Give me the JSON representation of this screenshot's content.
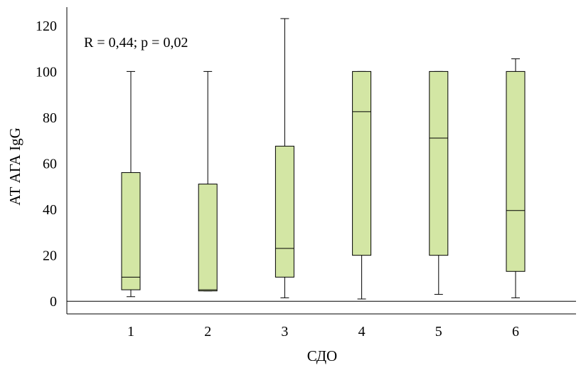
{
  "chart_data": {
    "type": "boxplot",
    "xlabel": "СДО",
    "ylabel": "АТ АГА IgG",
    "annotation": "R = 0,44; p = 0,02",
    "categories": [
      "1",
      "2",
      "3",
      "4",
      "5",
      "6"
    ],
    "ylim": [
      -5.5,
      128
    ],
    "yticks": [
      "0",
      "20",
      "40",
      "60",
      "80",
      "100",
      "120"
    ],
    "reference_line": 0,
    "grid": false,
    "box_color": "#d3e6a4",
    "boxes": [
      {
        "category": "1",
        "min": 2,
        "q1": 5,
        "median": 10.5,
        "q3": 56,
        "max": 100
      },
      {
        "category": "2",
        "min": 4.5,
        "q1": 4.5,
        "median": 5,
        "q3": 51,
        "max": 100
      },
      {
        "category": "3",
        "min": 1.5,
        "q1": 10.5,
        "median": 23,
        "q3": 67.5,
        "max": 123
      },
      {
        "category": "4",
        "min": 1,
        "q1": 20,
        "median": 82.5,
        "q3": 100,
        "max": 100
      },
      {
        "category": "5",
        "min": 3,
        "q1": 20,
        "median": 71,
        "q3": 100,
        "max": 100
      },
      {
        "category": "6",
        "min": 1.5,
        "q1": 13,
        "median": 39.5,
        "q3": 100,
        "max": 105.5
      }
    ]
  }
}
